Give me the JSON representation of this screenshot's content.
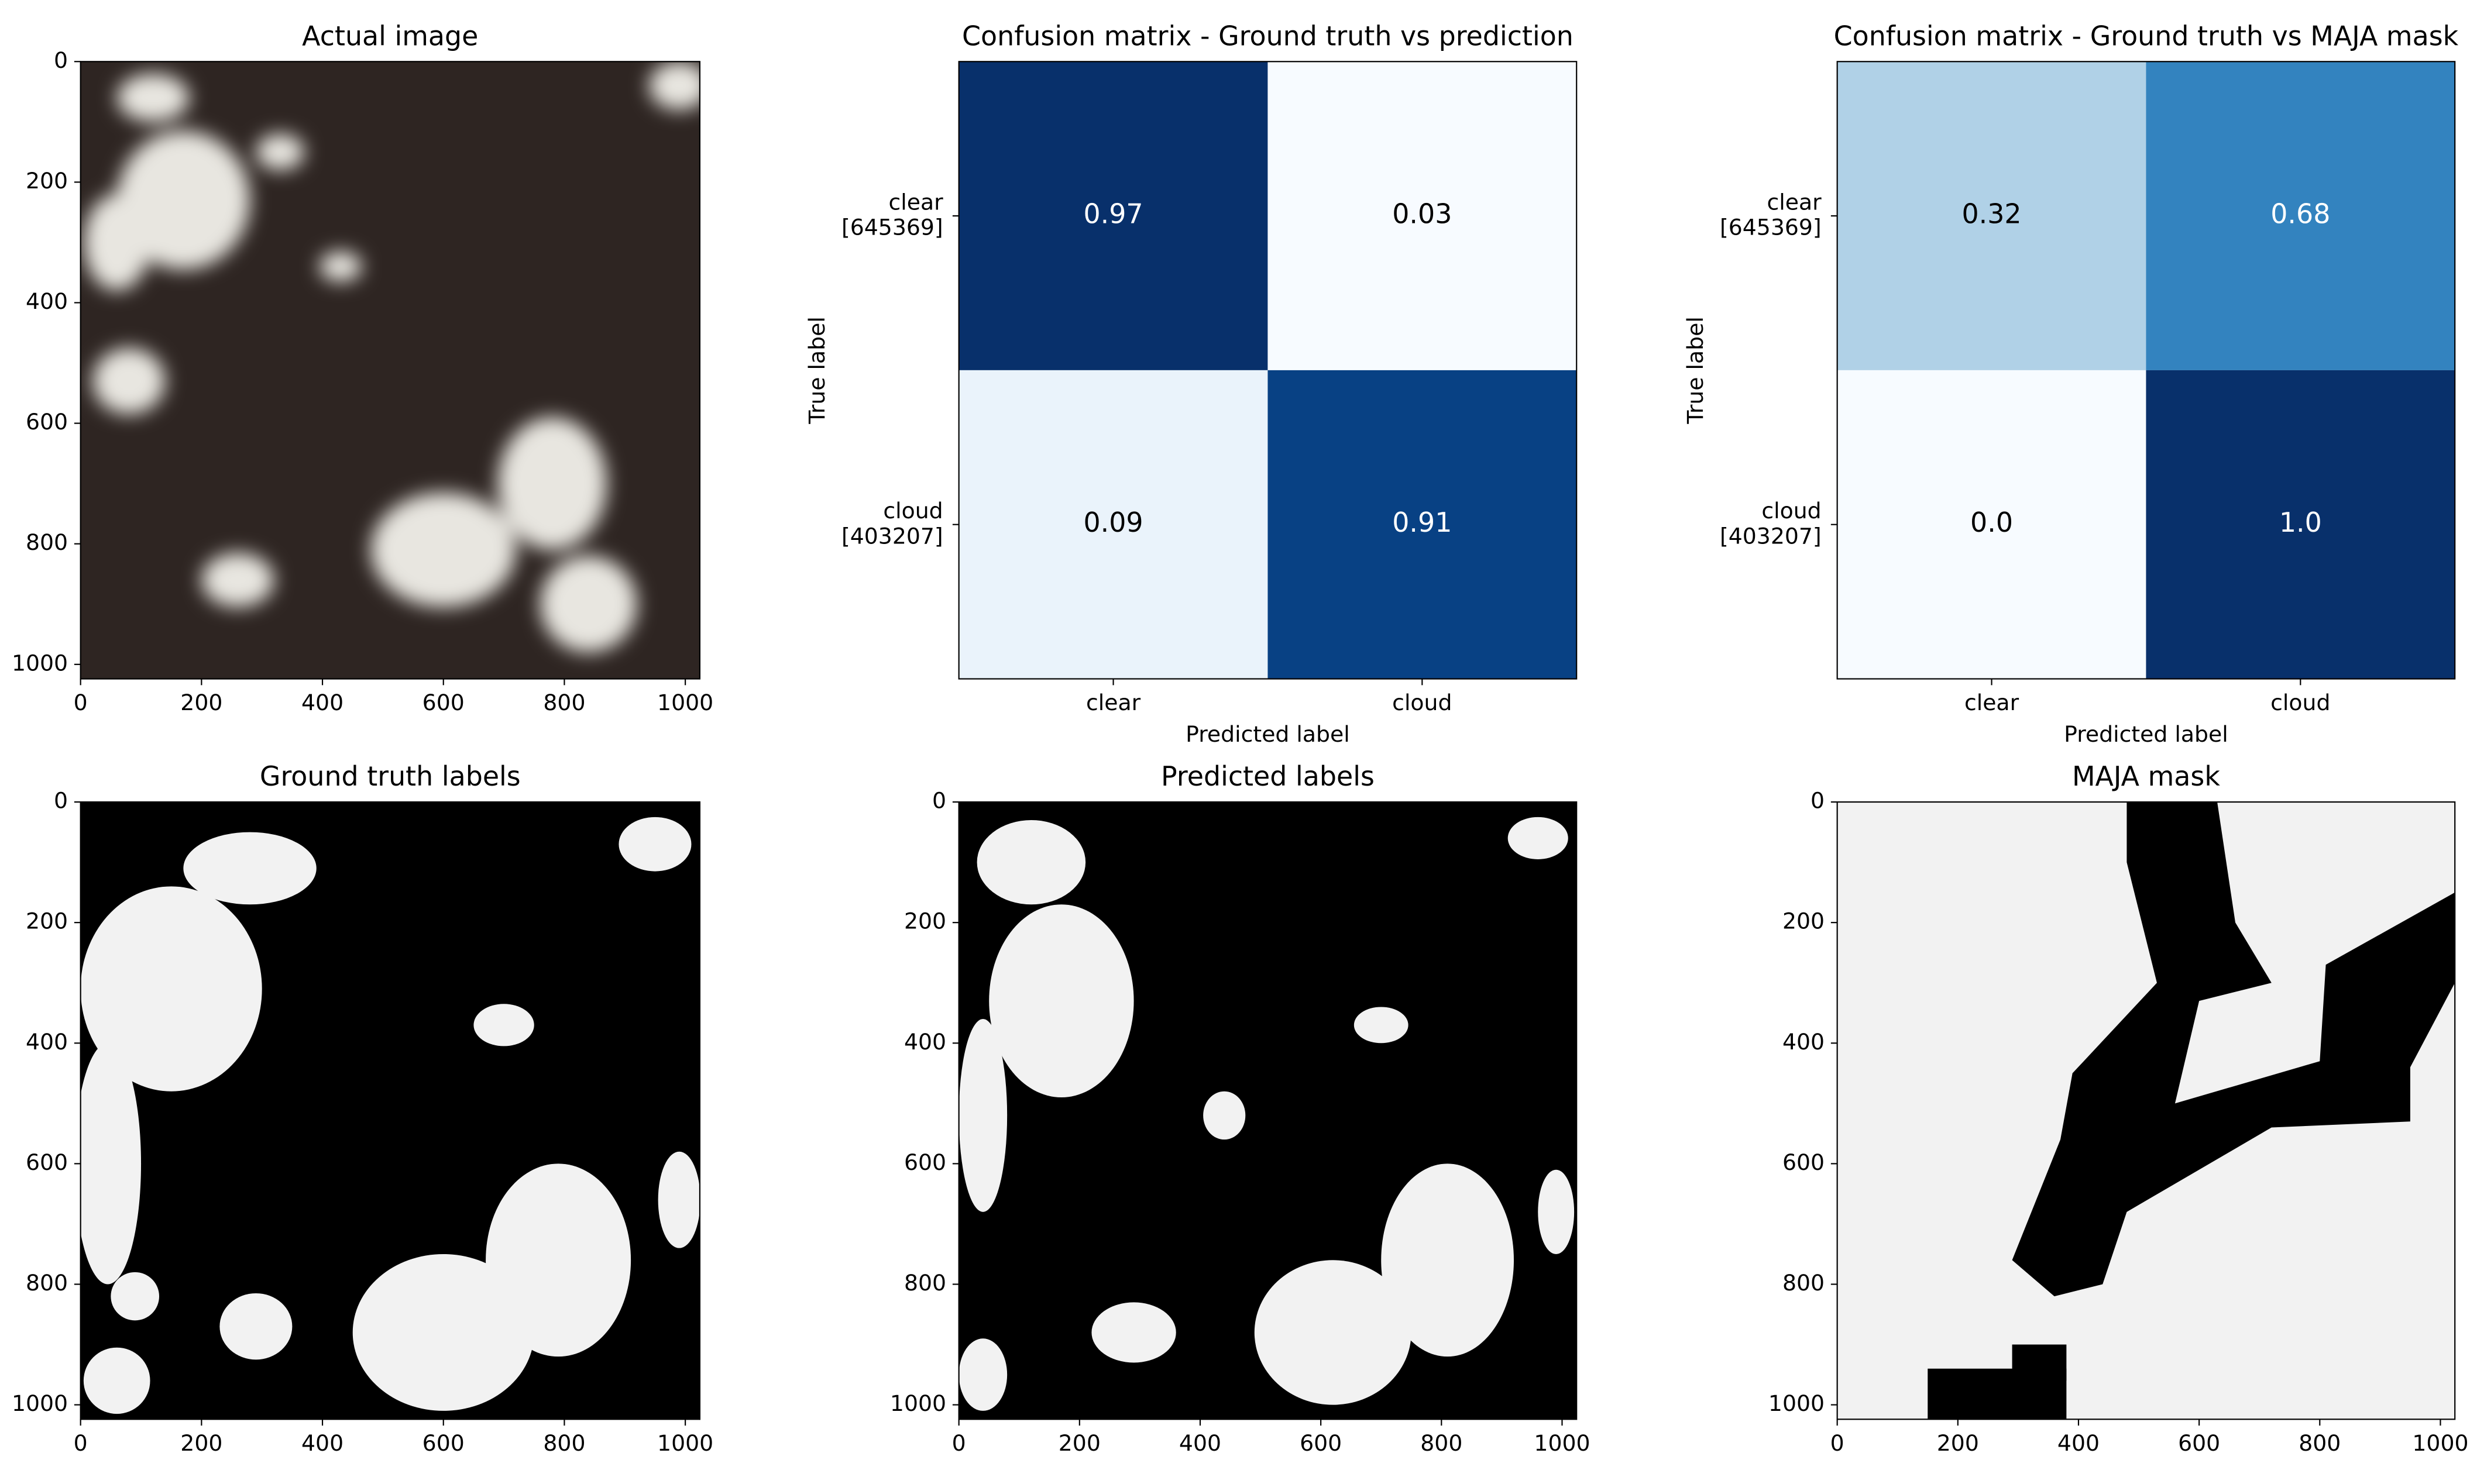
{
  "chart_data": [
    {
      "type": "image",
      "title": "Actual image",
      "xlim": [
        0,
        1024
      ],
      "ylim": [
        1024,
        0
      ],
      "xticks": [
        0,
        200,
        400,
        600,
        800,
        1000
      ],
      "yticks": [
        0,
        200,
        400,
        600,
        800,
        1000
      ]
    },
    {
      "type": "heatmap",
      "title": "Confusion matrix - Ground truth vs prediction",
      "x_categories": [
        "clear",
        "cloud"
      ],
      "y_categories": [
        "clear\n[645369]",
        "cloud\n[403207]"
      ],
      "values": [
        [
          0.97,
          0.03
        ],
        [
          0.09,
          0.91
        ]
      ],
      "x_label": "Predicted label",
      "y_label": "True label",
      "colormap": [
        "#f7fbff",
        "#deebf7",
        "#c6dbef",
        "#9ecae1",
        "#6baed6",
        "#4292c6",
        "#2171b5",
        "#08519c",
        "#08306b"
      ]
    },
    {
      "type": "heatmap",
      "title": "Confusion matrix - Ground truth vs MAJA mask",
      "x_categories": [
        "clear",
        "cloud"
      ],
      "y_categories": [
        "clear\n[645369]",
        "cloud\n[403207]"
      ],
      "values": [
        [
          0.32,
          0.68
        ],
        [
          0,
          1
        ]
      ],
      "value_labels": [
        [
          "0.32",
          "0.68"
        ],
        [
          "0.0",
          "1.0"
        ]
      ],
      "x_label": "Predicted label",
      "y_label": "True label",
      "colormap": [
        "#f7fbff",
        "#deebf7",
        "#c6dbef",
        "#9ecae1",
        "#6baed6",
        "#4292c6",
        "#2171b5",
        "#08519c",
        "#08306b"
      ]
    },
    {
      "type": "image",
      "title": "Ground truth labels",
      "xlim": [
        0,
        1024
      ],
      "ylim": [
        1024,
        0
      ],
      "xticks": [
        0,
        200,
        400,
        600,
        800,
        1000
      ],
      "yticks": [
        0,
        200,
        400,
        600,
        800,
        1000
      ]
    },
    {
      "type": "image",
      "title": "Predicted labels",
      "xlim": [
        0,
        1024
      ],
      "ylim": [
        1024,
        0
      ],
      "xticks": [
        0,
        200,
        400,
        600,
        800,
        1000
      ],
      "yticks": [
        0,
        200,
        400,
        600,
        800,
        1000
      ]
    },
    {
      "type": "image",
      "title": "MAJA mask",
      "xlim": [
        0,
        1024
      ],
      "ylim": [
        1024,
        0
      ],
      "xticks": [
        0,
        200,
        400,
        600,
        800,
        1000
      ],
      "yticks": [
        0,
        200,
        400,
        600,
        800,
        1000
      ]
    }
  ]
}
